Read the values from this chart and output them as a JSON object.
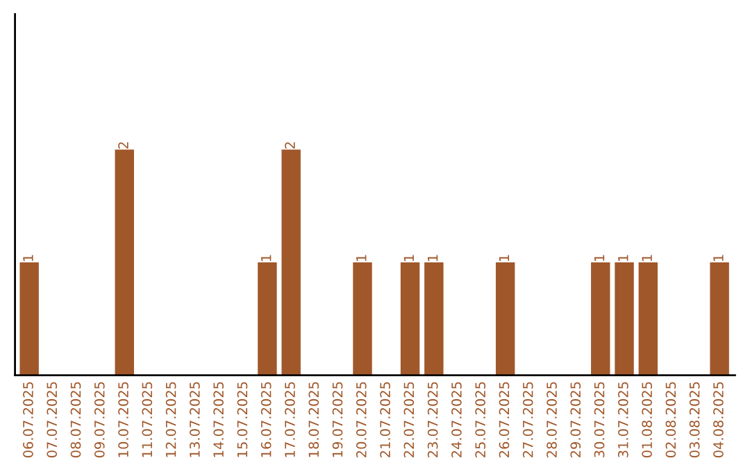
{
  "chart_data": {
    "type": "bar",
    "categories": [
      "06.07.2025",
      "07.07.2025",
      "08.07.2025",
      "09.07.2025",
      "10.07.2025",
      "11.07.2025",
      "12.07.2025",
      "13.07.2025",
      "14.07.2025",
      "15.07.2025",
      "16.07.2025",
      "17.07.2025",
      "18.07.2025",
      "19.07.2025",
      "20.07.2025",
      "21.07.2025",
      "22.07.2025",
      "23.07.2025",
      "24.07.2025",
      "25.07.2025",
      "26.07.2025",
      "27.07.2025",
      "28.07.2025",
      "29.07.2025",
      "30.07.2025",
      "31.07.2025",
      "01.08.2025",
      "02.08.2025",
      "03.08.2025",
      "04.08.2025"
    ],
    "values": [
      1,
      0,
      0,
      0,
      2,
      0,
      0,
      0,
      0,
      0,
      1,
      2,
      0,
      0,
      1,
      0,
      1,
      1,
      0,
      0,
      1,
      0,
      0,
      0,
      1,
      1,
      1,
      0,
      0,
      1
    ],
    "value_labels": [
      "1",
      null,
      null,
      null,
      "2",
      null,
      null,
      null,
      null,
      null,
      "1",
      "2",
      null,
      null,
      "1",
      null,
      "1",
      "1",
      null,
      null,
      "1",
      null,
      null,
      null,
      "1",
      "1",
      "1",
      null,
      null,
      "1"
    ],
    "color": "#a0572a",
    "ylim": [
      0,
      3.2
    ],
    "tick_labels": "x",
    "grid": false,
    "legend": false
  }
}
